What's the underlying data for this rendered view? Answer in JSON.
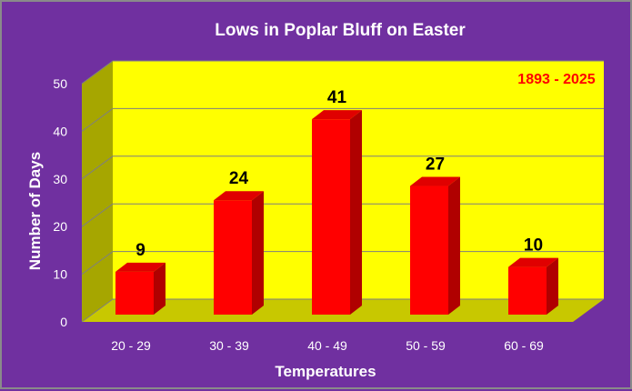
{
  "chart_data": {
    "type": "bar",
    "title": "Lows in Poplar Bluff on Easter",
    "annotation": "1893 - 2025",
    "xlabel": "Temperatures",
    "ylabel": "Number of Days",
    "categories": [
      "20 - 29",
      "30 - 39",
      "40 - 49",
      "50 - 59",
      "60 - 69"
    ],
    "values": [
      9,
      24,
      41,
      27,
      10
    ],
    "ylim": [
      0,
      50
    ],
    "yticks": [
      0,
      10,
      20,
      30,
      40,
      50
    ],
    "grid": true,
    "legend": "none",
    "colors": {
      "background": "#7030a0",
      "plot_back_wall": "#ffff00",
      "plot_floor": "#c8c800",
      "plot_side_wall": "#a6a600",
      "bar_front": "#ff0000",
      "bar_top": "#e00000",
      "bar_side": "#b00000",
      "gridline": "#7f7f7f",
      "text": "#ffffff",
      "data_label": "#000000",
      "annotation": "#ff0000"
    }
  }
}
